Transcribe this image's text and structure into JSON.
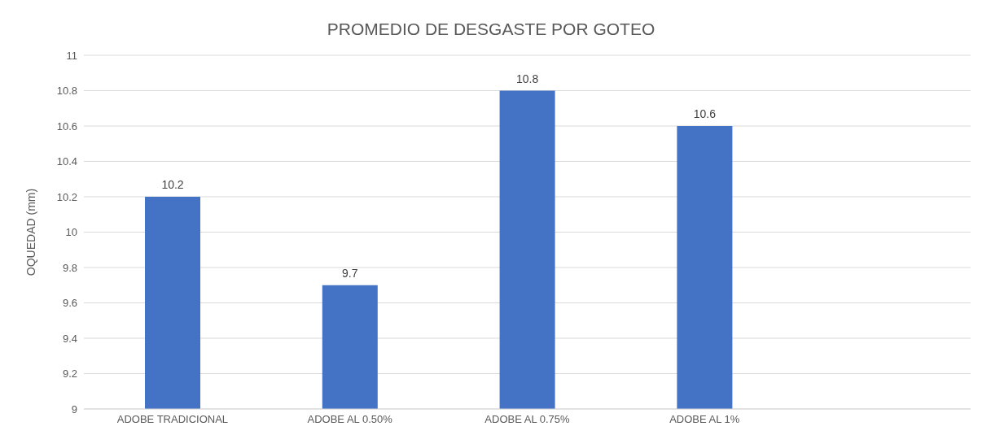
{
  "chart_data": {
    "type": "bar",
    "title": "PROMEDIO DE DESGASTE POR GOTEO",
    "ylabel": "OQUEDAD (mm)",
    "categories": [
      "ADOBE TRADICIONAL",
      "ADOBE AL 0.50%",
      "ADOBE AL 0.75%",
      "ADOBE AL 1%",
      null
    ],
    "values": [
      10.2,
      9.7,
      10.8,
      10.6,
      null
    ],
    "color": "#4472c4",
    "ylim": [
      9,
      11
    ],
    "yticks": [
      9,
      9.2,
      9.4,
      9.6,
      9.8,
      10,
      10.2,
      10.4,
      10.6,
      10.8,
      11
    ],
    "grid": "y",
    "data_labels": true
  }
}
